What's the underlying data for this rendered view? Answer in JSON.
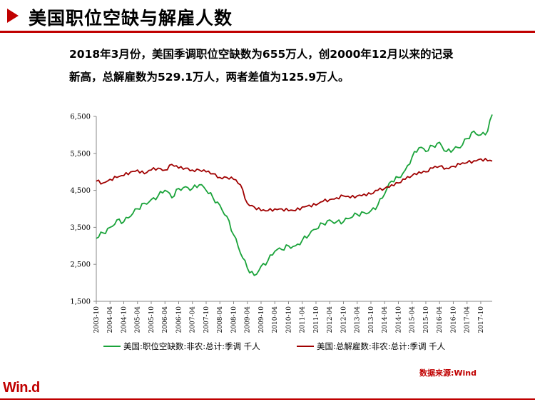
{
  "header": {
    "title": "美国职位空缺与解雇人数"
  },
  "summary": {
    "line1": "2018年3月份，美国季调职位空缺数为655万人，创2000年12月以来的记录",
    "line2": "新高，总解雇数为529.1万人，两者差值为125.9万人。"
  },
  "source": "数据来源:Wind",
  "logo": "Win.d",
  "colors": {
    "accent": "#c00000",
    "openings": "#1aa33a",
    "layoffs": "#a00000"
  },
  "chart_data": {
    "type": "line",
    "y_ticks": [
      "1,500",
      "2,500",
      "3,500",
      "4,500",
      "5,500",
      "6,500"
    ],
    "ylim": [
      1500,
      6500
    ],
    "xlim": [
      "2003-10",
      "2018-03"
    ],
    "x_ticks": [
      "2003-10",
      "2004-04",
      "2004-10",
      "2005-04",
      "2005-10",
      "2006-04",
      "2006-10",
      "2007-04",
      "2007-10",
      "2008-04",
      "2008-10",
      "2009-04",
      "2009-10",
      "2010-04",
      "2010-10",
      "2011-04",
      "2011-10",
      "2012-04",
      "2012-10",
      "2013-04",
      "2013-10",
      "2014-04",
      "2014-10",
      "2015-04",
      "2015-10",
      "2016-04",
      "2016-10",
      "2017-04",
      "2017-10"
    ],
    "series": [
      {
        "name": "美国:职位空缺数:非农:总计:季调 千人",
        "points": [
          [
            "2003-10",
            3200
          ],
          [
            "2004-01",
            3350
          ],
          [
            "2004-04",
            3500
          ],
          [
            "2004-07",
            3700
          ],
          [
            "2004-10",
            3650
          ],
          [
            "2005-01",
            3800
          ],
          [
            "2005-04",
            4000
          ],
          [
            "2005-07",
            4150
          ],
          [
            "2005-10",
            4250
          ],
          [
            "2006-01",
            4350
          ],
          [
            "2006-04",
            4500
          ],
          [
            "2006-07",
            4300
          ],
          [
            "2006-10",
            4550
          ],
          [
            "2007-01",
            4600
          ],
          [
            "2007-04",
            4550
          ],
          [
            "2007-07",
            4650
          ],
          [
            "2007-10",
            4500
          ],
          [
            "2008-01",
            4300
          ],
          [
            "2008-04",
            4100
          ],
          [
            "2008-07",
            3800
          ],
          [
            "2008-10",
            3300
          ],
          [
            "2009-01",
            2800
          ],
          [
            "2009-04",
            2400
          ],
          [
            "2009-07",
            2200
          ],
          [
            "2009-10",
            2450
          ],
          [
            "2010-01",
            2600
          ],
          [
            "2010-04",
            2850
          ],
          [
            "2010-07",
            2900
          ],
          [
            "2010-10",
            3000
          ],
          [
            "2011-01",
            3000
          ],
          [
            "2011-04",
            3150
          ],
          [
            "2011-07",
            3300
          ],
          [
            "2011-10",
            3450
          ],
          [
            "2012-01",
            3600
          ],
          [
            "2012-04",
            3700
          ],
          [
            "2012-07",
            3650
          ],
          [
            "2012-10",
            3650
          ],
          [
            "2013-01",
            3750
          ],
          [
            "2013-04",
            3850
          ],
          [
            "2013-07",
            3900
          ],
          [
            "2013-10",
            3950
          ],
          [
            "2014-01",
            4100
          ],
          [
            "2014-04",
            4400
          ],
          [
            "2014-07",
            4750
          ],
          [
            "2014-10",
            4850
          ],
          [
            "2015-01",
            5050
          ],
          [
            "2015-04",
            5400
          ],
          [
            "2015-07",
            5650
          ],
          [
            "2015-10",
            5550
          ],
          [
            "2016-01",
            5700
          ],
          [
            "2016-04",
            5800
          ],
          [
            "2016-07",
            5550
          ],
          [
            "2016-10",
            5600
          ],
          [
            "2017-01",
            5650
          ],
          [
            "2017-04",
            5900
          ],
          [
            "2017-07",
            6100
          ],
          [
            "2017-10",
            6000
          ],
          [
            "2018-01",
            6100
          ],
          [
            "2018-03",
            6550
          ]
        ]
      },
      {
        "name": "美国:总解雇数:非农:总计:季调 千人",
        "points": [
          [
            "2003-10",
            4750
          ],
          [
            "2004-01",
            4700
          ],
          [
            "2004-04",
            4800
          ],
          [
            "2004-07",
            4850
          ],
          [
            "2004-10",
            4900
          ],
          [
            "2005-01",
            5000
          ],
          [
            "2005-04",
            5050
          ],
          [
            "2005-07",
            4950
          ],
          [
            "2005-10",
            5050
          ],
          [
            "2006-01",
            5100
          ],
          [
            "2006-04",
            5050
          ],
          [
            "2006-07",
            5200
          ],
          [
            "2006-10",
            5100
          ],
          [
            "2007-01",
            5100
          ],
          [
            "2007-04",
            5050
          ],
          [
            "2007-07",
            5050
          ],
          [
            "2007-10",
            5000
          ],
          [
            "2008-01",
            4950
          ],
          [
            "2008-04",
            4850
          ],
          [
            "2008-07",
            4850
          ],
          [
            "2008-10",
            4800
          ],
          [
            "2009-01",
            4650
          ],
          [
            "2009-04",
            4150
          ],
          [
            "2009-07",
            4050
          ],
          [
            "2009-10",
            3950
          ],
          [
            "2010-01",
            3950
          ],
          [
            "2010-04",
            4000
          ],
          [
            "2010-07",
            4000
          ],
          [
            "2010-10",
            3950
          ],
          [
            "2011-01",
            3950
          ],
          [
            "2011-04",
            4050
          ],
          [
            "2011-07",
            4100
          ],
          [
            "2011-10",
            4100
          ],
          [
            "2012-01",
            4200
          ],
          [
            "2012-04",
            4250
          ],
          [
            "2012-07",
            4300
          ],
          [
            "2012-10",
            4350
          ],
          [
            "2013-01",
            4300
          ],
          [
            "2013-04",
            4350
          ],
          [
            "2013-07",
            4400
          ],
          [
            "2013-10",
            4400
          ],
          [
            "2014-01",
            4500
          ],
          [
            "2014-04",
            4550
          ],
          [
            "2014-07",
            4650
          ],
          [
            "2014-10",
            4700
          ],
          [
            "2015-01",
            4800
          ],
          [
            "2015-04",
            4900
          ],
          [
            "2015-07",
            5000
          ],
          [
            "2015-10",
            5000
          ],
          [
            "2016-01",
            5100
          ],
          [
            "2016-04",
            5150
          ],
          [
            "2016-07",
            5100
          ],
          [
            "2016-10",
            5150
          ],
          [
            "2017-01",
            5200
          ],
          [
            "2017-04",
            5250
          ],
          [
            "2017-07",
            5300
          ],
          [
            "2017-10",
            5350
          ],
          [
            "2018-01",
            5300
          ],
          [
            "2018-03",
            5291
          ]
        ]
      }
    ]
  }
}
